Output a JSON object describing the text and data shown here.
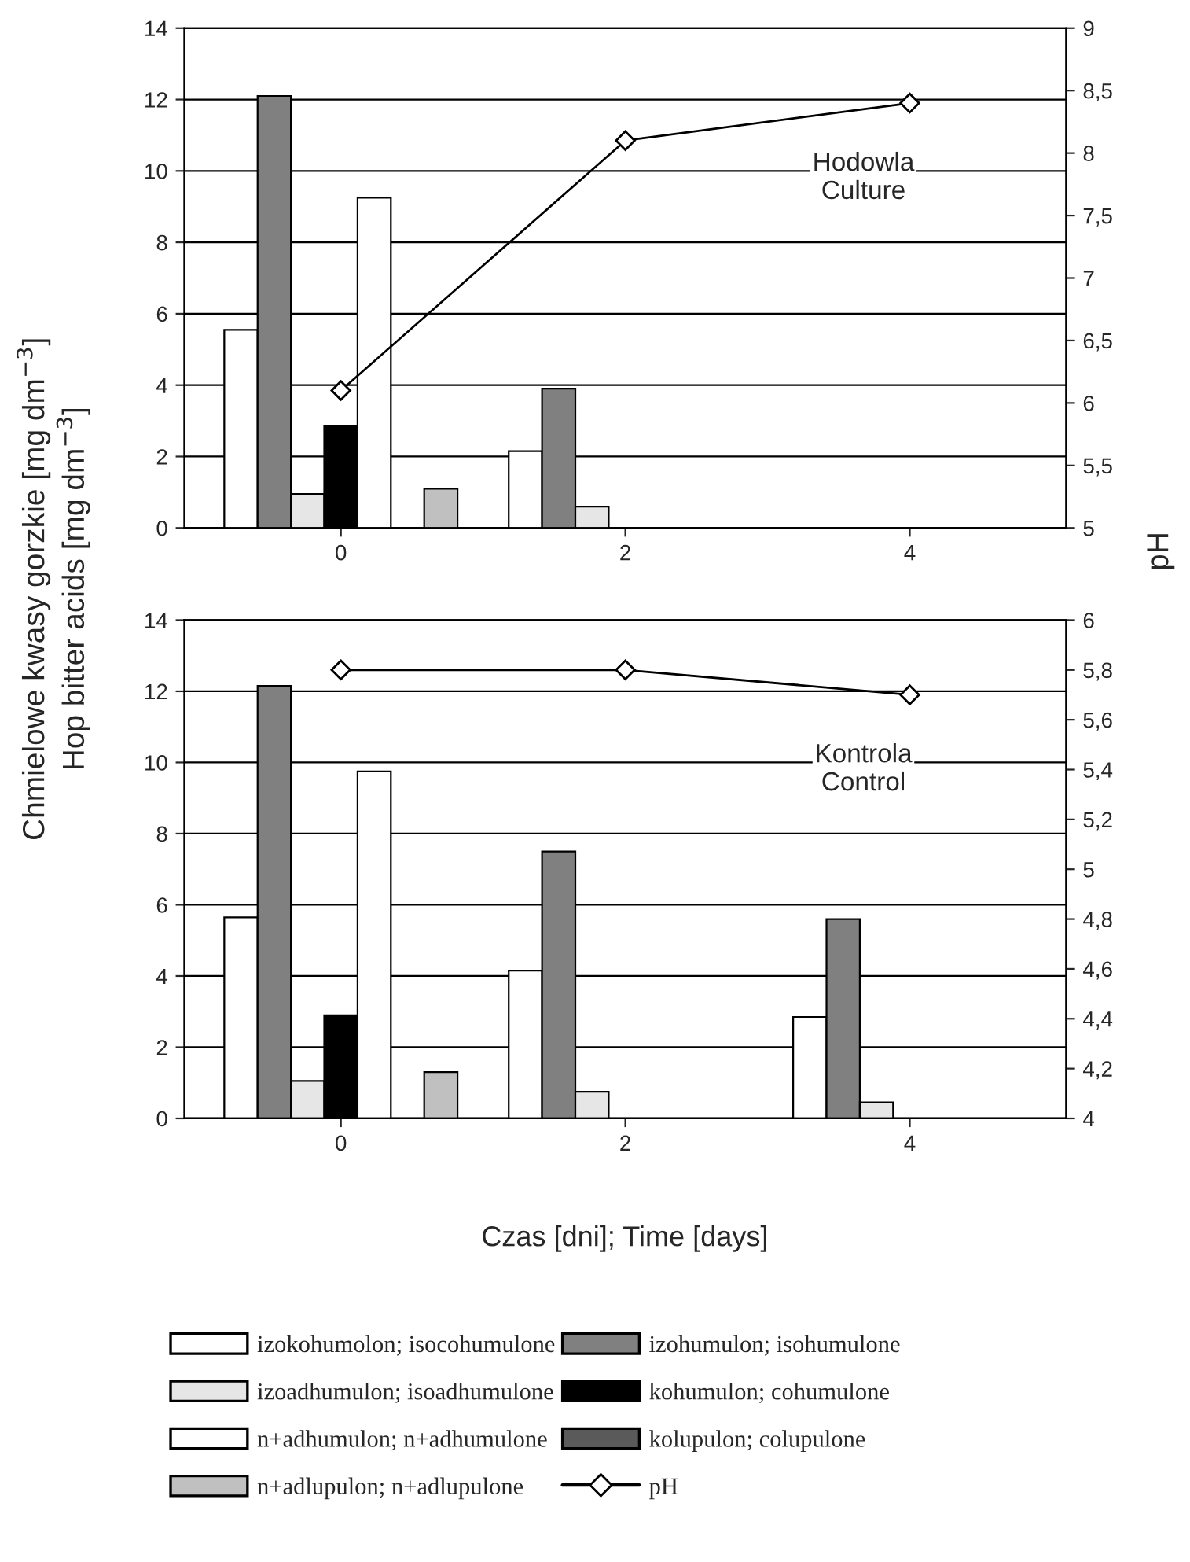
{
  "chart_data": [
    {
      "type": "bar",
      "categories": [
        "0",
        "2",
        "4"
      ],
      "ylabel": "Chmielowe kwasy gorzkie [mg dm$^{−3}$]\nHop bitter acids [mg dm$^{−3}$]",
      "y2label": "pH",
      "ylim": [
        0,
        14
      ],
      "yticks": [
        0,
        2,
        4,
        6,
        8,
        10,
        12,
        14
      ],
      "y2lim": [
        5,
        9
      ],
      "y2ticks": [
        5,
        {
          "value": 5.5,
          "label": "5,5"
        },
        6,
        {
          "value": 6.5,
          "label": "6,5"
        },
        7,
        {
          "value": 7.5,
          "label": "7,5"
        },
        8,
        {
          "value": 8.5,
          "label": "8,5"
        },
        9
      ],
      "grid": "y",
      "marker": "diamond",
      "annotations": [
        "Hodowla\nCulture"
      ],
      "series": [
        {
          "color": "#ffffff",
          "values": [
            5.55,
            2.15,
            null
          ]
        },
        {
          "color": "#808080",
          "values": [
            12.1,
            3.9,
            null
          ]
        },
        {
          "color": "#e6e6e6",
          "values": [
            0.95,
            0.6,
            null
          ]
        },
        {
          "color": "#000000",
          "values": [
            2.85,
            null,
            null
          ]
        },
        {
          "color": "#ffffff",
          "values": [
            9.25,
            null,
            null
          ]
        },
        {
          "color": "#5a5a5a",
          "values": [
            null,
            null,
            null
          ]
        },
        {
          "color": "#c0c0c0",
          "values": [
            1.1,
            null,
            null
          ]
        },
        {
          "type": "line",
          "axis": "y2",
          "color": "#000000",
          "values": [
            6.1,
            8.1,
            8.4
          ]
        }
      ]
    },
    {
      "type": "bar",
      "categories": [
        "0",
        "2",
        "4"
      ],
      "xlabel": "Czas [dni]; Time [days]",
      "ylim": [
        0,
        14
      ],
      "yticks": [
        0,
        2,
        4,
        6,
        8,
        10,
        12,
        14
      ],
      "y2lim": [
        4,
        6
      ],
      "y2ticks": [
        4,
        {
          "value": 4.2,
          "label": "4,2"
        },
        {
          "value": 4.4,
          "label": "4,4"
        },
        {
          "value": 4.6,
          "label": "4,6"
        },
        {
          "value": 4.8,
          "label": "4,8"
        },
        5,
        {
          "value": 5.2,
          "label": "5,2"
        },
        {
          "value": 5.4,
          "label": "5,4"
        },
        {
          "value": 5.6,
          "label": "5,6"
        },
        {
          "value": 5.8,
          "label": "5,8"
        },
        6
      ],
      "grid": "y",
      "marker": "diamond",
      "legend": "bottom",
      "annotations": [
        "Kontrola\nControl"
      ],
      "series": [
        {
          "name": "izokohumolon; isocohumulone",
          "color": "#ffffff",
          "values": [
            5.65,
            4.15,
            2.85
          ]
        },
        {
          "name": "izohumulon; isohumulone",
          "color": "#808080",
          "values": [
            12.15,
            7.5,
            5.6
          ]
        },
        {
          "name": "izoadhumulon; isoadhumulone",
          "color": "#e6e6e6",
          "values": [
            1.05,
            0.75,
            0.45
          ]
        },
        {
          "name": "kohumulon; cohumulone",
          "color": "#000000",
          "values": [
            2.9,
            null,
            null
          ]
        },
        {
          "name": "n+adhumulon; n+adhumulone",
          "color": "#ffffff",
          "values": [
            9.75,
            null,
            null
          ]
        },
        {
          "name": "kolupulon; colupulone",
          "color": "#5a5a5a",
          "values": [
            null,
            null,
            null
          ]
        },
        {
          "name": "n+adlupulon; n+adlupulone",
          "color": "#c0c0c0",
          "values": [
            1.3,
            null,
            null
          ]
        },
        {
          "name": "pH",
          "type": "line",
          "axis": "y2",
          "color": "#000000",
          "values": [
            5.8,
            5.8,
            5.7
          ]
        }
      ]
    }
  ]
}
